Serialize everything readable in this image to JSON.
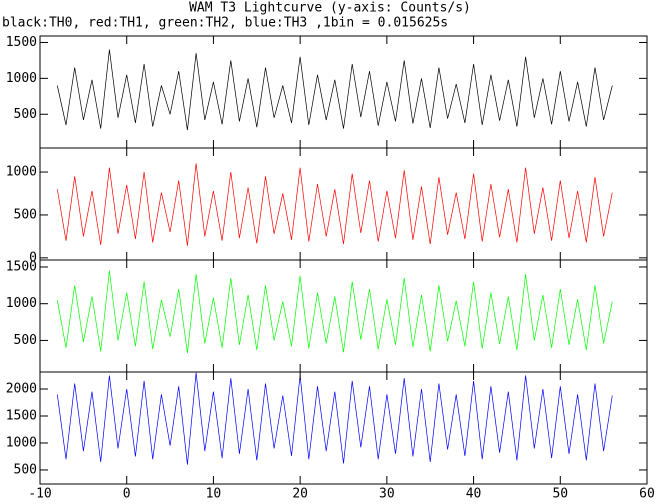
{
  "chart_data": [
    {
      "type": "line",
      "title": "WAM T3 Lightcurve (y-axis: Counts/s)",
      "subtitle": "black:TH0, red:TH1, green:TH2, blue:TH3 ,1bin = 0.015625s",
      "ylim": [
        30,
        1590
      ],
      "yticks": [
        500,
        1000,
        1500
      ],
      "series": [
        {
          "color": "#000000",
          "values": [
            900,
            350,
            1150,
            420,
            980,
            300,
            1400,
            450,
            1050,
            380,
            1200,
            330,
            900,
            500,
            1100,
            280,
            1350,
            420,
            950,
            360,
            1250,
            400,
            1000,
            320,
            1150,
            450,
            900,
            380,
            1300,
            350,
            1050,
            420,
            980,
            300,
            1200,
            460,
            1100,
            340,
            950,
            400,
            1250,
            370,
            1000,
            310,
            1150,
            440,
            920,
            380,
            1200,
            350,
            1050,
            410,
            980,
            330,
            1300,
            450,
            1000,
            360,
            1100,
            400,
            950,
            330,
            1150,
            420,
            900
          ]
        }
      ]
    },
    {
      "type": "line",
      "ylim": [
        -25,
        1280
      ],
      "yticks": [
        0,
        500,
        1000
      ],
      "series": [
        {
          "color": "#ff0000",
          "values": [
            800,
            200,
            950,
            250,
            780,
            150,
            1050,
            280,
            850,
            220,
            1000,
            180,
            760,
            300,
            900,
            140,
            1100,
            250,
            780,
            200,
            1000,
            230,
            820,
            170,
            950,
            280,
            750,
            210,
            1050,
            190,
            860,
            250,
            800,
            160,
            980,
            290,
            900,
            190,
            780,
            230,
            1020,
            210,
            830,
            160,
            940,
            270,
            760,
            220,
            980,
            190,
            860,
            240,
            800,
            180,
            1050,
            280,
            820,
            200,
            900,
            230,
            780,
            180,
            940,
            250,
            760
          ]
        }
      ]
    },
    {
      "type": "line",
      "ylim": [
        70,
        1595
      ],
      "yticks": [
        500,
        1000,
        1500
      ],
      "series": [
        {
          "color": "#00ff00",
          "values": [
            1050,
            400,
            1250,
            480,
            1100,
            350,
            1450,
            500,
            1150,
            420,
            1300,
            380,
            1050,
            550,
            1200,
            330,
            1400,
            460,
            1080,
            400,
            1350,
            440,
            1120,
            370,
            1250,
            500,
            1030,
            420,
            1380,
            390,
            1150,
            460,
            1100,
            340,
            1300,
            510,
            1200,
            380,
            1060,
            440,
            1350,
            410,
            1120,
            350,
            1250,
            490,
            1040,
            420,
            1300,
            390,
            1150,
            450,
            1100,
            370,
            1400,
            500,
            1120,
            400,
            1200,
            440,
            1060,
            370,
            1250,
            460,
            1030
          ]
        }
      ]
    },
    {
      "type": "line",
      "ylim": [
        240,
        2315
      ],
      "yticks": [
        500,
        1000,
        1500,
        2000
      ],
      "xlim": [
        -10,
        60
      ],
      "xticks": [
        -10,
        0,
        10,
        20,
        30,
        40,
        50,
        60
      ],
      "x": [
        -8,
        -7,
        -6,
        -5,
        -4,
        -3,
        -2,
        -1,
        0,
        1,
        2,
        3,
        4,
        5,
        6,
        7,
        8,
        9,
        10,
        11,
        12,
        13,
        14,
        15,
        16,
        17,
        18,
        19,
        20,
        21,
        22,
        23,
        24,
        25,
        26,
        27,
        28,
        29,
        30,
        31,
        32,
        33,
        34,
        35,
        36,
        37,
        38,
        39,
        40,
        41,
        42,
        43,
        44,
        45,
        46,
        47,
        48,
        49,
        50,
        51,
        52,
        53,
        54,
        55,
        56
      ],
      "series": [
        {
          "color": "#0000ff",
          "values": [
            1900,
            700,
            2100,
            850,
            1950,
            650,
            2250,
            900,
            2000,
            750,
            2150,
            700,
            1900,
            950,
            2050,
            600,
            2300,
            850,
            1950,
            720,
            2200,
            800,
            2000,
            680,
            2100,
            900,
            1880,
            760,
            2250,
            700,
            2050,
            850,
            1950,
            620,
            2150,
            920,
            2050,
            700,
            1900,
            800,
            2200,
            750,
            2000,
            650,
            2100,
            880,
            1900,
            760,
            2150,
            700,
            2050,
            820,
            1950,
            680,
            2250,
            900,
            2000,
            720,
            2050,
            800,
            1900,
            680,
            2100,
            850,
            1880
          ]
        }
      ]
    }
  ]
}
